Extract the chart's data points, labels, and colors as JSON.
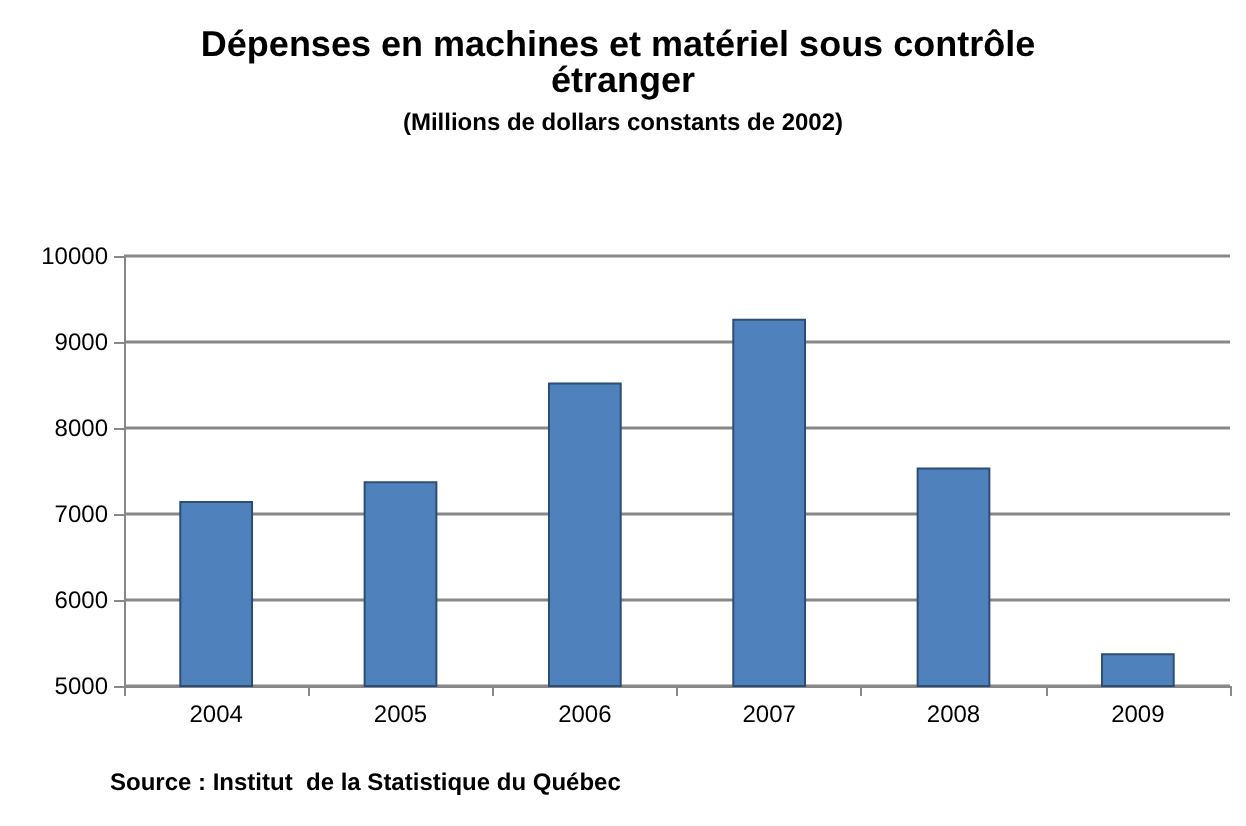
{
  "chart_data": {
    "type": "bar",
    "title": "Dépenses en machines et matériel sous contrôle étranger",
    "subtitle": "(Millions de dollars constants de 2002)",
    "categories": [
      "2004",
      "2005",
      "2006",
      "2007",
      "2008",
      "2009"
    ],
    "values": [
      7150,
      7380,
      8530,
      9270,
      7540,
      5380
    ],
    "color": "#4f81bd",
    "ylim": [
      5000,
      10000
    ],
    "yticks": [
      5000,
      6000,
      7000,
      8000,
      9000,
      10000
    ],
    "grid": "y",
    "annotations": [
      "Source : Institut  de la Statistique du Québec"
    ]
  }
}
